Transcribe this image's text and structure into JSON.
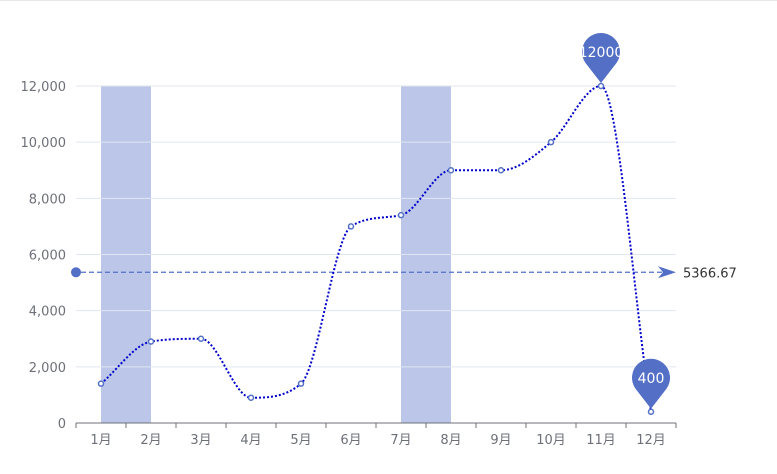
{
  "chart_data": {
    "type": "line",
    "categories": [
      "1月",
      "2月",
      "3月",
      "4月",
      "5月",
      "6月",
      "7月",
      "8月",
      "9月",
      "10月",
      "11月",
      "12月"
    ],
    "series": [
      {
        "values": [
          1400,
          2900,
          3000,
          900,
          1400,
          7000,
          7400,
          9000,
          9000,
          10000,
          12000,
          400
        ]
      }
    ],
    "y_ticks": [
      0,
      2000,
      4000,
      6000,
      8000,
      10000,
      12000
    ],
    "y_tick_labels": [
      "0",
      "2,000",
      "4,000",
      "6,000",
      "8,000",
      "10,000",
      "12,000"
    ],
    "ylim": [
      0,
      12000
    ],
    "smooth": true,
    "line_style": "dotted",
    "grid": true,
    "highlight_bands": [
      {
        "from": "1月",
        "to": "2月",
        "value_top": 12000
      },
      {
        "from": "7月",
        "to": "8月",
        "value_top": 12000
      }
    ],
    "mark_points": [
      {
        "type": "max",
        "category": "11月",
        "value": 12000,
        "label": "12000"
      },
      {
        "type": "min",
        "category": "12月",
        "value": 400,
        "label": "400"
      }
    ],
    "mark_line": {
      "type": "average",
      "value": 5366.67,
      "label": "5366.67"
    },
    "colors": {
      "line": "#0000cc",
      "points": "#5470c6",
      "band": "#5470c6",
      "pin": "#5470c6",
      "average": "#5470c6",
      "grid": "#e0e6f1",
      "axis": "#6e7079"
    }
  }
}
